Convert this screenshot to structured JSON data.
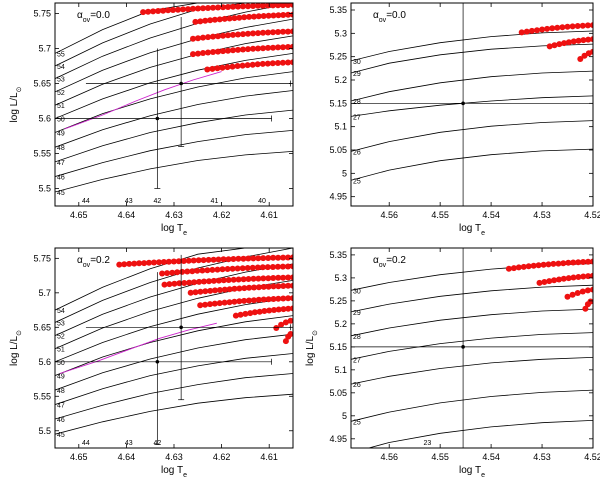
{
  "figure_note": "",
  "chart_data": [
    {
      "type": "line",
      "annotation_main": "α",
      "annotation_sub": "ov",
      "annotation_value": "=0.0",
      "xlabel_main": "log T",
      "xlabel_sub": "e",
      "ylabel_main": "log L/L",
      "ylabel_sub": "⊙",
      "xlim": [
        4.655,
        4.605
      ],
      "ylim": [
        5.475,
        5.765
      ],
      "xticks": [
        4.65,
        4.64,
        4.63,
        4.62,
        4.61
      ],
      "xtick_labels": [
        "4.65",
        "4.64",
        "4.63",
        "4.62",
        "4.61"
      ],
      "yticks": [
        5.5,
        5.55,
        5.6,
        5.65,
        5.7,
        5.75
      ],
      "ytick_labels": [
        "5.5",
        "5.55",
        "5.6",
        "5.65",
        "5.7",
        "5.75"
      ],
      "tracks": [
        {
          "label": "45",
          "x": [
            4.655,
            4.645,
            4.635,
            4.625,
            4.615,
            4.605
          ],
          "y": [
            5.495,
            5.513,
            5.528,
            5.54,
            5.548,
            5.553
          ]
        },
        {
          "label": "46",
          "x": [
            4.655,
            4.645,
            4.635,
            4.625,
            4.615,
            4.605
          ],
          "y": [
            5.517,
            5.537,
            5.554,
            5.567,
            5.577,
            5.583
          ]
        },
        {
          "label": "47",
          "x": [
            4.655,
            4.645,
            4.635,
            4.625,
            4.615,
            4.605
          ],
          "y": [
            5.538,
            5.561,
            5.58,
            5.594,
            5.605,
            5.612
          ]
        },
        {
          "label": "48",
          "x": [
            4.655,
            4.645,
            4.635,
            4.625,
            4.615,
            4.605
          ],
          "y": [
            5.559,
            5.584,
            5.604,
            5.62,
            5.632,
            5.64
          ]
        },
        {
          "label": "49",
          "x": [
            4.655,
            4.645,
            4.635,
            4.625,
            4.615,
            4.605
          ],
          "y": [
            5.58,
            5.607,
            5.628,
            5.645,
            5.658,
            5.667
          ]
        },
        {
          "label": "50",
          "x": [
            4.655,
            4.645,
            4.635,
            4.625,
            4.615,
            4.605
          ],
          "y": [
            5.6,
            5.628,
            5.651,
            5.669,
            5.683,
            5.693
          ]
        },
        {
          "label": "51",
          "x": [
            4.655,
            4.645,
            4.635,
            4.625,
            4.615,
            4.605
          ],
          "y": [
            5.619,
            5.649,
            5.673,
            5.692,
            5.707,
            5.718
          ]
        },
        {
          "label": "52",
          "x": [
            4.655,
            4.645,
            4.635,
            4.625,
            4.615,
            4.605
          ],
          "y": [
            5.638,
            5.669,
            5.694,
            5.714,
            5.73,
            5.742
          ]
        },
        {
          "label": "53",
          "x": [
            4.655,
            4.645,
            4.635,
            4.625,
            4.615,
            4.605
          ],
          "y": [
            5.657,
            5.689,
            5.715,
            5.736,
            5.752,
            5.765
          ]
        },
        {
          "label": "54",
          "x": [
            4.655,
            4.645,
            4.635,
            4.625,
            4.615,
            4.605
          ],
          "y": [
            5.675,
            5.708,
            5.735,
            5.756,
            5.765,
            5.765
          ]
        },
        {
          "label": "55",
          "x": [
            4.655,
            4.645,
            4.635,
            4.625,
            4.615
          ],
          "y": [
            5.693,
            5.727,
            5.754,
            5.765,
            5.765
          ]
        }
      ],
      "bottom_labels": [
        {
          "label": "44",
          "x": 4.6485
        },
        {
          "label": "43",
          "x": 4.6395
        },
        {
          "label": "42",
          "x": 4.6335
        },
        {
          "label": "41",
          "x": 4.6215
        },
        {
          "label": "40",
          "x": 4.6115
        }
      ],
      "magenta_track": {
        "x": [
          4.653,
          4.645,
          4.638,
          4.632,
          4.626,
          4.62
        ],
        "y": [
          5.585,
          5.605,
          5.625,
          5.641,
          5.655,
          5.667
        ]
      },
      "red_bands": [
        {
          "x0": 4.6365,
          "x1": 4.605,
          "y_start": 5.752
        },
        {
          "x0": 4.6255,
          "x1": 4.605,
          "y_start": 5.738
        },
        {
          "x0": 4.626,
          "x1": 4.605,
          "y_start": 5.714
        },
        {
          "x0": 4.626,
          "x1": 4.605,
          "y_start": 5.692
        },
        {
          "x0": 4.623,
          "x1": 4.605,
          "y_start": 5.67
        }
      ],
      "points": [
        {
          "x": 4.6335,
          "y": 5.6,
          "xerr": [
            4.655,
            4.6095
          ],
          "yerr": [
            5.5,
            5.7
          ]
        },
        {
          "x": 4.6285,
          "y": 5.65,
          "xerr": [
            4.6485,
            4.6055
          ],
          "yerr": [
            5.56,
            5.745
          ]
        }
      ]
    },
    {
      "type": "line",
      "annotation_main": "α",
      "annotation_sub": "ov",
      "annotation_value": "=0.0",
      "xlabel_main": "log T",
      "xlabel_sub": "e",
      "ylabel_main": "",
      "ylabel_sub": "",
      "xlim": [
        4.5675,
        4.52
      ],
      "ylim": [
        4.93,
        5.365
      ],
      "xticks": [
        4.56,
        4.55,
        4.54,
        4.53,
        4.52
      ],
      "xtick_labels": [
        "4.56",
        "4.55",
        "4.54",
        "4.53",
        "4.52"
      ],
      "yticks": [
        4.95,
        5.0,
        5.05,
        5.1,
        5.15,
        5.2,
        5.25,
        5.3,
        5.35
      ],
      "ytick_labels": [
        "4.95",
        "5",
        "5.05",
        "5.1",
        "5.15",
        "5.2",
        "5.25",
        "5.3",
        "5.35"
      ],
      "tracks": [
        {
          "label": "25",
          "x": [
            4.5675,
            4.56,
            4.55,
            4.54,
            4.53,
            4.52
          ],
          "y": [
            4.985,
            5.007,
            5.027,
            5.04,
            5.048,
            5.052
          ]
        },
        {
          "label": "26",
          "x": [
            4.5675,
            4.56,
            4.55,
            4.54,
            4.53,
            4.52
          ],
          "y": [
            5.047,
            5.068,
            5.088,
            5.101,
            5.109,
            5.113
          ]
        },
        {
          "label": "27",
          "x": [
            4.5675,
            4.56,
            4.55,
            4.54,
            4.53,
            4.52
          ],
          "y": [
            5.122,
            5.134,
            5.146,
            5.155,
            5.162,
            5.166
          ]
        },
        {
          "label": "28",
          "x": [
            4.5675,
            4.56,
            4.55,
            4.54,
            4.53,
            4.52
          ],
          "y": [
            5.155,
            5.175,
            5.194,
            5.207,
            5.215,
            5.219
          ]
        },
        {
          "label": "29",
          "x": [
            4.5675,
            4.56,
            4.55,
            4.54,
            4.53,
            4.52
          ],
          "y": [
            5.215,
            5.236,
            5.254,
            5.266,
            5.273,
            5.277
          ]
        },
        {
          "label": "30",
          "x": [
            4.5675,
            4.56,
            4.55,
            4.54,
            4.53,
            4.52
          ],
          "y": [
            5.241,
            5.261,
            5.28,
            5.293,
            5.301,
            5.305
          ]
        }
      ],
      "bottom_labels": [],
      "magenta_track": null,
      "red_bands": [
        {
          "x0": 4.534,
          "x1": 4.52,
          "y_start": 5.302
        },
        {
          "x0": 4.5285,
          "x1": 4.52,
          "y_start": 5.272
        },
        {
          "x0": 4.5225,
          "x1": 4.52,
          "y_start": 5.245
        }
      ],
      "points": [
        {
          "x": 4.5455,
          "y": 5.15,
          "xerr": [
            4.5675,
            4.52
          ],
          "yerr": [
            4.93,
            5.365
          ]
        }
      ]
    },
    {
      "type": "line",
      "annotation_main": "α",
      "annotation_sub": "ov",
      "annotation_value": "=0.2",
      "xlabel_main": "log T",
      "xlabel_sub": "e",
      "ylabel_main": "log L/L",
      "ylabel_sub": "⊙",
      "xlim": [
        4.655,
        4.605
      ],
      "ylim": [
        5.475,
        5.765
      ],
      "xticks": [
        4.65,
        4.64,
        4.63,
        4.62,
        4.61
      ],
      "xtick_labels": [
        "4.65",
        "4.64",
        "4.63",
        "4.62",
        "4.61"
      ],
      "yticks": [
        5.5,
        5.55,
        5.6,
        5.65,
        5.7,
        5.75
      ],
      "ytick_labels": [
        "5.5",
        "5.55",
        "5.6",
        "5.65",
        "5.7",
        "5.75"
      ],
      "tracks": [
        {
          "label": "45",
          "x": [
            4.655,
            4.645,
            4.635,
            4.625,
            4.615,
            4.605
          ],
          "y": [
            5.495,
            5.513,
            5.528,
            5.54,
            5.548,
            5.553
          ]
        },
        {
          "label": "46",
          "x": [
            4.655,
            4.645,
            4.635,
            4.625,
            4.615,
            4.605
          ],
          "y": [
            5.517,
            5.537,
            5.554,
            5.567,
            5.577,
            5.583
          ]
        },
        {
          "label": "47",
          "x": [
            4.655,
            4.645,
            4.635,
            4.625,
            4.615,
            4.605
          ],
          "y": [
            5.538,
            5.561,
            5.58,
            5.594,
            5.605,
            5.612
          ]
        },
        {
          "label": "48",
          "x": [
            4.655,
            4.645,
            4.635,
            4.625,
            4.615,
            4.605
          ],
          "y": [
            5.559,
            5.584,
            5.604,
            5.62,
            5.632,
            5.64
          ]
        },
        {
          "label": "49",
          "x": [
            4.655,
            4.645,
            4.635,
            4.625,
            4.615,
            4.605
          ],
          "y": [
            5.58,
            5.607,
            5.628,
            5.645,
            5.658,
            5.667
          ]
        },
        {
          "label": "50",
          "x": [
            4.655,
            4.645,
            4.635,
            4.625,
            4.615,
            4.605
          ],
          "y": [
            5.6,
            5.628,
            5.651,
            5.669,
            5.683,
            5.693
          ]
        },
        {
          "label": "51",
          "x": [
            4.655,
            4.645,
            4.635,
            4.625,
            4.615,
            4.605
          ],
          "y": [
            5.619,
            5.649,
            5.673,
            5.692,
            5.707,
            5.718
          ]
        },
        {
          "label": "52",
          "x": [
            4.655,
            4.645,
            4.635,
            4.625,
            4.615,
            4.605
          ],
          "y": [
            5.638,
            5.669,
            5.694,
            5.714,
            5.73,
            5.742
          ]
        },
        {
          "label": "53",
          "x": [
            4.655,
            4.645,
            4.635,
            4.625,
            4.615,
            4.605
          ],
          "y": [
            5.657,
            5.689,
            5.715,
            5.736,
            5.752,
            5.765
          ]
        },
        {
          "label": "54",
          "x": [
            4.655,
            4.645,
            4.635,
            4.625,
            4.615,
            4.605
          ],
          "y": [
            5.675,
            5.708,
            5.735,
            5.756,
            5.765,
            5.765
          ]
        }
      ],
      "bottom_labels": [
        {
          "label": "44",
          "x": 4.6485
        },
        {
          "label": "43",
          "x": 4.6395
        },
        {
          "label": "42",
          "x": 4.6335
        }
      ],
      "magenta_track": {
        "x": [
          4.654,
          4.646,
          4.639,
          4.633,
          4.627,
          4.621
        ],
        "y": [
          5.583,
          5.601,
          5.619,
          5.634,
          5.646,
          5.656
        ]
      },
      "red_bands": [
        {
          "x0": 4.6415,
          "x1": 4.605,
          "y_start": 5.741
        },
        {
          "x0": 4.6325,
          "x1": 4.605,
          "y_start": 5.728
        },
        {
          "x0": 4.632,
          "x1": 4.605,
          "y_start": 5.712
        },
        {
          "x0": 4.6265,
          "x1": 4.605,
          "y_start": 5.7
        },
        {
          "x0": 4.6245,
          "x1": 4.605,
          "y_start": 5.682
        },
        {
          "x0": 4.617,
          "x1": 4.605,
          "y_start": 5.667
        },
        {
          "x0": 4.6085,
          "x1": 4.6055,
          "y_start": 5.649
        },
        {
          "x0": 4.6065,
          "x1": 4.6055,
          "y_start": 5.63
        }
      ],
      "points": [
        {
          "x": 4.6335,
          "y": 5.6,
          "xerr": [
            4.655,
            4.6095
          ],
          "yerr": [
            5.48,
            5.73
          ]
        },
        {
          "x": 4.6285,
          "y": 5.65,
          "xerr": [
            4.6485,
            4.6055
          ],
          "yerr": [
            5.545,
            5.755
          ]
        }
      ]
    },
    {
      "type": "line",
      "annotation_main": "α",
      "annotation_sub": "ov",
      "annotation_value": "=0.2",
      "xlabel_main": "log T",
      "xlabel_sub": "e",
      "ylabel_main": "log L/L",
      "ylabel_sub": "⊙",
      "xlim": [
        4.5675,
        4.52
      ],
      "ylim": [
        4.93,
        5.365
      ],
      "xticks": [
        4.56,
        4.55,
        4.54,
        4.53,
        4.52
      ],
      "xtick_labels": [
        "4.56",
        "4.55",
        "4.54",
        "4.53",
        "4.52"
      ],
      "yticks": [
        4.95,
        5.0,
        5.05,
        5.1,
        5.15,
        5.2,
        5.25,
        5.3,
        5.35
      ],
      "ytick_labels": [
        "4.95",
        "5",
        "5.05",
        "5.1",
        "5.15",
        "5.2",
        "5.25",
        "5.3",
        "5.35"
      ],
      "tracks": [
        {
          "label": "24",
          "x": [
            4.564,
            4.56,
            4.55,
            4.54,
            4.53,
            4.52
          ],
          "y": [
            4.93,
            4.942,
            4.962,
            4.976,
            4.985,
            4.99
          ]
        },
        {
          "label": "25",
          "x": [
            4.5675,
            4.56,
            4.55,
            4.54,
            4.53,
            4.52
          ],
          "y": [
            4.988,
            5.008,
            5.028,
            5.042,
            5.051,
            5.056
          ]
        },
        {
          "label": "26",
          "x": [
            4.5675,
            4.56,
            4.55,
            4.54,
            4.53,
            4.52
          ],
          "y": [
            5.069,
            5.086,
            5.103,
            5.115,
            5.123,
            5.127
          ]
        },
        {
          "label": "27",
          "x": [
            4.5675,
            4.56,
            4.55,
            4.54,
            4.53,
            4.52
          ],
          "y": [
            5.123,
            5.14,
            5.157,
            5.169,
            5.177,
            5.181
          ]
        },
        {
          "label": "28",
          "x": [
            4.5675,
            4.56,
            4.55,
            4.54,
            4.53,
            4.52
          ],
          "y": [
            5.174,
            5.191,
            5.208,
            5.22,
            5.228,
            5.232
          ]
        },
        {
          "label": "29",
          "x": [
            4.5675,
            4.56,
            4.55,
            4.54,
            4.53,
            4.52
          ],
          "y": [
            5.226,
            5.243,
            5.26,
            5.272,
            5.28,
            5.284
          ]
        },
        {
          "label": "30",
          "x": [
            4.5675,
            4.56,
            4.55,
            4.54,
            4.53,
            4.52
          ],
          "y": [
            5.273,
            5.29,
            5.307,
            5.319,
            5.327,
            5.331
          ]
        }
      ],
      "bottom_labels": [
        {
          "label": "23",
          "x": 4.5525
        }
      ],
      "magenta_track": null,
      "red_bands": [
        {
          "x0": 4.5365,
          "x1": 4.52,
          "y_start": 5.32
        },
        {
          "x0": 4.5305,
          "x1": 4.52,
          "y_start": 5.289
        },
        {
          "x0": 4.525,
          "x1": 4.52,
          "y_start": 5.259
        },
        {
          "x0": 4.5215,
          "x1": 4.5205,
          "y_start": 5.233
        }
      ],
      "points": [
        {
          "x": 4.5455,
          "y": 5.15,
          "xerr": [
            4.5675,
            4.52
          ],
          "yerr": [
            4.93,
            5.365
          ]
        }
      ]
    }
  ]
}
